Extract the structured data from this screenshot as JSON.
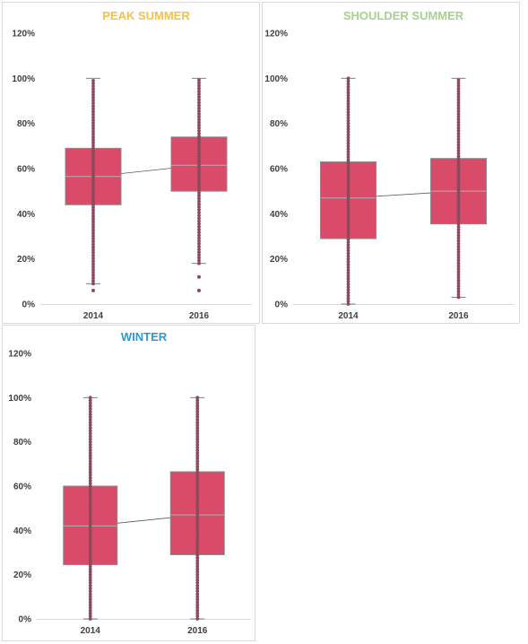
{
  "chart_data": [
    {
      "type": "box",
      "title": "PEAK SUMMER",
      "title_color": "#F5C242",
      "categories": [
        "2014",
        "2016"
      ],
      "ylim": [
        0,
        1.2
      ],
      "yticks": [
        "0%",
        "20%",
        "40%",
        "60%",
        "80%",
        "100%",
        "120%"
      ],
      "grid": false,
      "box_color": "#D94B68",
      "boxes": [
        {
          "category": "2014",
          "q1": 0.44,
          "median": 0.565,
          "q3": 0.69,
          "whisker_low": 0.09,
          "whisker_high": 1.0,
          "outliers": [
            0.06
          ]
        },
        {
          "category": "2016",
          "q1": 0.5,
          "median": 0.615,
          "q3": 0.74,
          "whisker_low": 0.18,
          "whisker_high": 1.0,
          "outliers": [
            0.12,
            0.06
          ]
        }
      ]
    },
    {
      "type": "box",
      "title": "SHOULDER SUMMER",
      "title_color": "#A9D18E",
      "categories": [
        "2014",
        "2016"
      ],
      "ylim": [
        0,
        1.2
      ],
      "yticks": [
        "0%",
        "20%",
        "40%",
        "60%",
        "80%",
        "100%",
        "120%"
      ],
      "grid": false,
      "box_color": "#D94B68",
      "boxes": [
        {
          "category": "2014",
          "q1": 0.29,
          "median": 0.47,
          "q3": 0.63,
          "whisker_low": 0.0,
          "whisker_high": 1.0,
          "outliers": []
        },
        {
          "category": "2016",
          "q1": 0.355,
          "median": 0.5,
          "q3": 0.645,
          "whisker_low": 0.03,
          "whisker_high": 1.0,
          "outliers": []
        }
      ]
    },
    {
      "type": "box",
      "title": "WINTER",
      "title_color": "#2E9AD0",
      "categories": [
        "2014",
        "2016"
      ],
      "ylim": [
        0,
        1.2
      ],
      "yticks": [
        "0%",
        "20%",
        "40%",
        "60%",
        "80%",
        "100%",
        "120%"
      ],
      "grid": false,
      "box_color": "#D94B68",
      "boxes": [
        {
          "category": "2014",
          "q1": 0.245,
          "median": 0.42,
          "q3": 0.6,
          "whisker_low": 0.0,
          "whisker_high": 1.0,
          "outliers": []
        },
        {
          "category": "2016",
          "q1": 0.29,
          "median": 0.47,
          "q3": 0.665,
          "whisker_low": 0.0,
          "whisker_high": 1.0,
          "outliers": []
        }
      ]
    }
  ]
}
